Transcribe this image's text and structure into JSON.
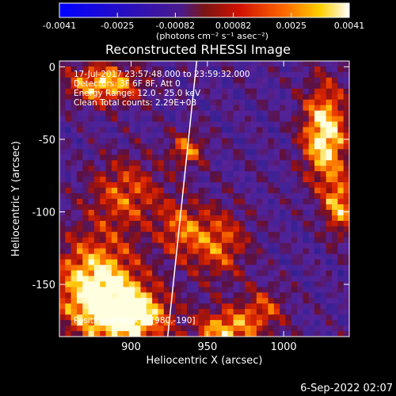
{
  "chart_data": {
    "type": "heatmap",
    "title": "Reconstructed RHESSI Image",
    "xlabel": "Heliocentric X (arcsec)",
    "ylabel": "Heliocentric Y (arcsec)",
    "xlim": [
      853,
      1043
    ],
    "ylim": [
      -186,
      4
    ],
    "xticks": [
      900,
      950,
      1000
    ],
    "yticks": [
      0,
      -50,
      -100,
      -150
    ],
    "colorbar": {
      "ticks": [
        "-0.0041",
        "-0.0025",
        "-0.00082",
        "0.00082",
        "0.0025",
        "0.0041"
      ],
      "min": -0.0041,
      "max": 0.0041,
      "unit": "(photons cm⁻² s⁻¹ asec⁻²)",
      "colormap": [
        "#0000ff",
        "#4a1a8c",
        "#7a1515",
        "#d01000",
        "#ff6a00",
        "#ffd000",
        "#ffffff"
      ]
    },
    "info": {
      "time": "17-Jul-2017 23:57:48.000 to 23:59:32.000",
      "detectors": "Detectors: 3F 6F 8F, Att 0",
      "energy": "Energy Range: 12.0 - 25.0 keV",
      "clean": "Clean     Total counts: 2.29E+03"
    },
    "peak_label": "Position of Peak = [980,-190]",
    "limb_line": [
      [
        943,
        4
      ],
      [
        924,
        -186
      ]
    ],
    "hot_regions": [
      {
        "x": 875,
        "y": -150,
        "w": 1.0,
        "sx": 28,
        "sy": 35
      },
      {
        "x": 900,
        "y": -170,
        "w": 0.9,
        "sx": 25,
        "sy": 20
      },
      {
        "x": 960,
        "y": -180,
        "w": 0.8,
        "sx": 20,
        "sy": 15
      },
      {
        "x": 1025,
        "y": -45,
        "w": 1.0,
        "sx": 15,
        "sy": 35
      },
      {
        "x": 1035,
        "y": -95,
        "w": 0.7,
        "sx": 10,
        "sy": 20
      },
      {
        "x": 880,
        "y": -10,
        "w": 0.85,
        "sx": 25,
        "sy": 14
      },
      {
        "x": 895,
        "y": -85,
        "w": 0.55,
        "sx": 25,
        "sy": 25
      },
      {
        "x": 935,
        "y": -55,
        "w": 0.6,
        "sx": 12,
        "sy": 12
      },
      {
        "x": 955,
        "y": -120,
        "w": 0.6,
        "sx": 20,
        "sy": 25
      },
      {
        "x": 985,
        "y": -165,
        "w": 0.5,
        "sx": 15,
        "sy": 15
      },
      {
        "x": 930,
        "y": -110,
        "w": 0.5,
        "sx": 15,
        "sy": 20
      }
    ],
    "grid": false
  },
  "footer": {
    "date": "6-Sep-2022 02:07"
  }
}
